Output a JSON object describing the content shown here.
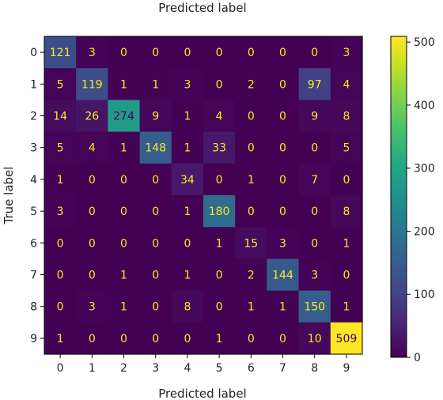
{
  "chart_data": {
    "type": "heatmap",
    "title": "Predicted label",
    "xlabel": "Predicted label",
    "ylabel": "True label",
    "x_ticks": [
      "0",
      "1",
      "2",
      "3",
      "4",
      "5",
      "6",
      "7",
      "8",
      "9"
    ],
    "y_ticks": [
      "0",
      "1",
      "2",
      "3",
      "4",
      "5",
      "6",
      "7",
      "8",
      "9"
    ],
    "matrix": [
      [
        121,
        3,
        0,
        0,
        0,
        0,
        0,
        0,
        0,
        3
      ],
      [
        5,
        119,
        1,
        1,
        3,
        0,
        2,
        0,
        97,
        4
      ],
      [
        14,
        26,
        274,
        9,
        1,
        4,
        0,
        0,
        9,
        8
      ],
      [
        5,
        4,
        1,
        148,
        1,
        33,
        0,
        0,
        0,
        5
      ],
      [
        1,
        0,
        0,
        0,
        34,
        0,
        1,
        0,
        7,
        0
      ],
      [
        3,
        0,
        0,
        0,
        1,
        180,
        0,
        0,
        0,
        8
      ],
      [
        0,
        0,
        0,
        0,
        0,
        1,
        15,
        3,
        0,
        1
      ],
      [
        0,
        0,
        1,
        0,
        1,
        0,
        2,
        144,
        3,
        0
      ],
      [
        0,
        3,
        1,
        0,
        8,
        0,
        1,
        1,
        150,
        1
      ],
      [
        1,
        0,
        0,
        0,
        0,
        1,
        0,
        0,
        10,
        509
      ]
    ],
    "colormap": "viridis",
    "color_range": [
      0,
      509
    ],
    "colorbar_ticks": [
      0,
      100,
      200,
      300,
      400,
      500
    ],
    "grid": false
  }
}
